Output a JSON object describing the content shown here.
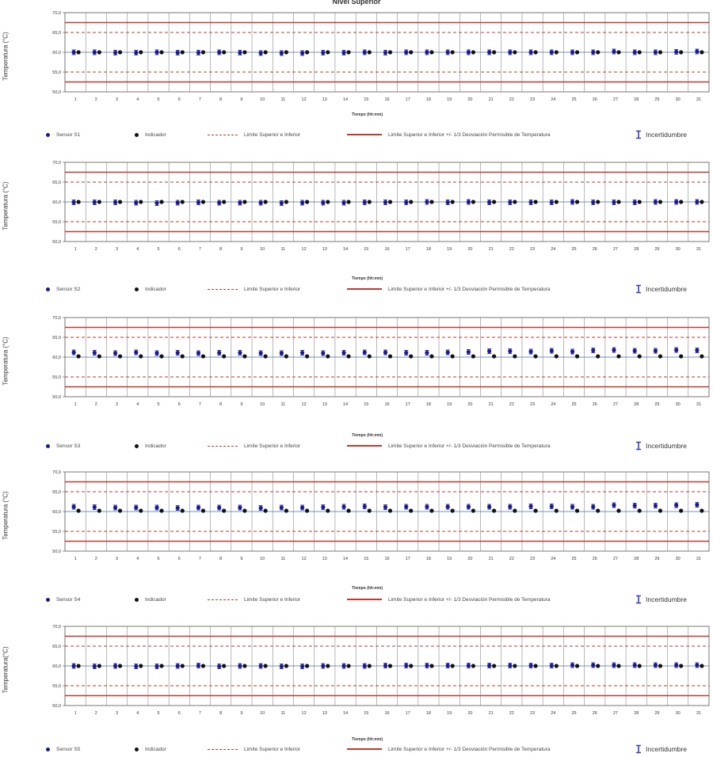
{
  "page": {
    "title": "Nivel Superior"
  },
  "shared": {
    "xlabel": "Tiempo (hh:mm)",
    "x_ticks": [
      "1",
      "2",
      "3",
      "4",
      "5",
      "6",
      "7",
      "8",
      "9",
      "10",
      "11",
      "12",
      "13",
      "14",
      "15",
      "16",
      "17",
      "18",
      "19",
      "20",
      "21",
      "22",
      "23",
      "24",
      "25",
      "26",
      "27",
      "28",
      "29",
      "30",
      "31"
    ],
    "y_ticks": [
      "70,0",
      "65,0",
      "60,0",
      "55,0",
      "50,0"
    ],
    "ylim": [
      50,
      70
    ],
    "limits": {
      "outer": [
        52.5,
        67.5
      ],
      "inner": [
        55.0,
        65.0
      ],
      "setpoint": 60.0
    },
    "legend": {
      "indicator": "Indicador",
      "limit_dashed": "Limite Superior e Inferior",
      "limit_solid": "Limite Superior e Inferior  +/- 1/3  Desviación Permisible de Temperatura",
      "uncertainty": "Incertidumbre"
    },
    "colors": {
      "sensor": "#1a1a8c",
      "indicator": "#111111",
      "limit": "#c0392b",
      "grid": "#888888",
      "setpoint": "#4a6fa5"
    }
  },
  "chart_data": [
    {
      "type": "scatter",
      "ylabel": "Temperatura (°C)",
      "series": [
        {
          "name": "Sensor S1",
          "values": [
            60.0,
            60.0,
            59.9,
            59.9,
            60.0,
            59.9,
            59.9,
            60.0,
            59.9,
            59.8,
            59.8,
            59.8,
            59.9,
            59.9,
            60.0,
            59.9,
            60.0,
            60.0,
            60.0,
            60.0,
            60.0,
            60.0,
            60.0,
            60.0,
            60.0,
            60.0,
            60.2,
            60.0,
            60.0,
            60.1,
            60.2
          ]
        },
        {
          "name": "Indicador",
          "values": [
            60.0,
            60.0,
            60.0,
            60.0,
            60.0,
            60.0,
            60.0,
            60.0,
            60.0,
            60.0,
            60.0,
            60.0,
            60.0,
            60.0,
            60.0,
            60.0,
            60.0,
            60.0,
            60.0,
            60.0,
            60.0,
            60.0,
            60.0,
            60.0,
            60.0,
            60.0,
            60.0,
            60.0,
            60.0,
            60.0,
            60.0
          ]
        }
      ]
    },
    {
      "type": "scatter",
      "ylabel": "Temperatura (°C)",
      "series": [
        {
          "name": "Sensor S2",
          "values": [
            59.9,
            59.9,
            59.9,
            59.8,
            59.7,
            59.8,
            59.9,
            59.8,
            59.8,
            59.8,
            59.7,
            59.8,
            59.8,
            59.8,
            59.9,
            59.9,
            59.9,
            60.0,
            59.9,
            60.0,
            59.9,
            59.9,
            59.9,
            59.9,
            60.0,
            59.9,
            59.9,
            59.9,
            60.0,
            60.0,
            60.0
          ]
        },
        {
          "name": "Indicador",
          "values": [
            60.0,
            60.0,
            60.0,
            60.0,
            60.0,
            60.0,
            60.0,
            60.0,
            60.0,
            60.0,
            60.0,
            60.0,
            60.0,
            60.0,
            60.0,
            60.0,
            60.0,
            60.0,
            60.0,
            60.0,
            60.0,
            60.0,
            60.0,
            60.0,
            60.0,
            60.0,
            60.0,
            60.0,
            60.0,
            60.0,
            60.0
          ]
        }
      ]
    },
    {
      "type": "scatter",
      "ylabel": "Temperatura (°C)",
      "series": [
        {
          "name": "Sensor S3",
          "values": [
            61.2,
            61.1,
            61.0,
            61.2,
            61.0,
            61.1,
            61.0,
            61.1,
            61.1,
            61.0,
            61.0,
            61.1,
            61.0,
            61.1,
            61.2,
            61.2,
            61.1,
            61.1,
            61.2,
            61.3,
            61.5,
            61.5,
            61.4,
            61.6,
            61.4,
            61.7,
            61.8,
            61.6,
            61.6,
            61.8,
            61.7
          ]
        },
        {
          "name": "Indicador",
          "values": [
            60.2,
            60.2,
            60.2,
            60.2,
            60.2,
            60.2,
            60.2,
            60.2,
            60.2,
            60.2,
            60.2,
            60.2,
            60.2,
            60.2,
            60.2,
            60.2,
            60.2,
            60.2,
            60.2,
            60.2,
            60.2,
            60.2,
            60.2,
            60.2,
            60.2,
            60.2,
            60.2,
            60.2,
            60.2,
            60.2,
            60.2
          ]
        }
      ]
    },
    {
      "type": "scatter",
      "ylabel": "Temperatura (°C)",
      "series": [
        {
          "name": "Sensor S4",
          "values": [
            61.2,
            61.1,
            61.0,
            61.0,
            61.0,
            60.9,
            61.0,
            61.0,
            61.0,
            60.9,
            61.0,
            61.0,
            61.1,
            61.2,
            61.3,
            61.1,
            61.2,
            61.2,
            61.2,
            61.2,
            61.2,
            61.2,
            61.3,
            61.3,
            61.2,
            61.2,
            61.6,
            61.5,
            61.5,
            61.6,
            61.7
          ]
        },
        {
          "name": "Indicador",
          "values": [
            60.2,
            60.2,
            60.2,
            60.2,
            60.2,
            60.2,
            60.2,
            60.2,
            60.2,
            60.2,
            60.2,
            60.2,
            60.2,
            60.2,
            60.2,
            60.2,
            60.2,
            60.2,
            60.2,
            60.2,
            60.2,
            60.2,
            60.2,
            60.2,
            60.2,
            60.2,
            60.2,
            60.2,
            60.2,
            60.2,
            60.2
          ]
        }
      ]
    },
    {
      "type": "scatter",
      "ylabel": "Temperatura(°C)",
      "series": [
        {
          "name": "Sensor S5",
          "values": [
            60.0,
            59.9,
            60.0,
            59.9,
            59.9,
            60.0,
            60.1,
            59.9,
            60.0,
            60.0,
            59.9,
            59.9,
            60.0,
            60.0,
            60.0,
            60.1,
            60.1,
            60.1,
            60.1,
            60.1,
            60.1,
            60.1,
            60.1,
            60.1,
            60.2,
            60.2,
            60.2,
            60.2,
            60.2,
            60.2,
            60.2
          ]
        },
        {
          "name": "Indicador",
          "values": [
            60.0,
            60.0,
            60.0,
            60.0,
            60.0,
            60.0,
            60.0,
            60.0,
            60.0,
            60.0,
            60.0,
            60.0,
            60.0,
            60.0,
            60.0,
            60.0,
            60.0,
            60.0,
            60.0,
            60.0,
            60.0,
            60.0,
            60.0,
            60.0,
            60.0,
            60.0,
            60.0,
            60.0,
            60.0,
            60.0,
            60.0
          ]
        }
      ]
    }
  ]
}
